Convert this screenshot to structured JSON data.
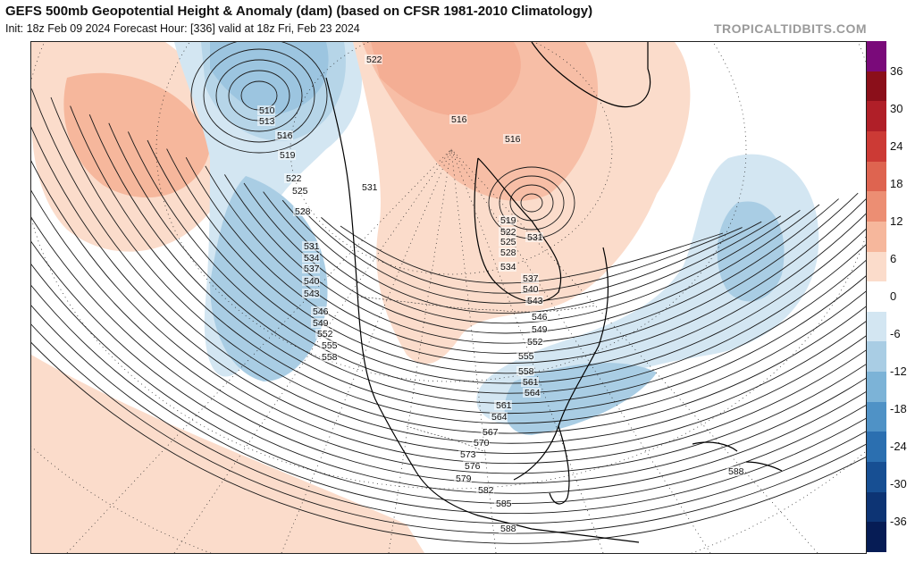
{
  "header": {
    "title": "GEFS 500mb Geopotential Height & Anomaly (dam) (based on CFSR 1981-2010 Climatology)",
    "subtitle": "Init: 18z Feb 09 2024   Forecast Hour: [336]   valid at 18z Fri, Feb 23 2024",
    "watermark": "TROPICALTIDBITS.COM"
  },
  "colorbar": {
    "labels": [
      "36",
      "30",
      "24",
      "18",
      "12",
      "6",
      "0",
      "-6",
      "-12",
      "-18",
      "-24",
      "-30",
      "-36"
    ],
    "colors": [
      "#7a0a7a",
      "#8b0f1a",
      "#b01f28",
      "#cc3a35",
      "#de6450",
      "#ec8e73",
      "#f6b79c",
      "#fbdccb",
      "#ffffff",
      "#d3e6f2",
      "#a9cde4",
      "#7cb3d7",
      "#4f92c6",
      "#2b6fb0",
      "#174f93",
      "#0d3474",
      "#061c55"
    ]
  },
  "map": {
    "height_labels": [
      "510",
      "513",
      "516",
      "519",
      "522",
      "525",
      "528",
      "531",
      "534",
      "537",
      "540",
      "543",
      "546",
      "549",
      "552",
      "555",
      "558",
      "561",
      "564",
      "567",
      "570",
      "573",
      "576",
      "579",
      "582",
      "585",
      "588",
      "522",
      "519",
      "522",
      "525",
      "528",
      "531",
      "534",
      "537",
      "540",
      "543",
      "546",
      "549",
      "552",
      "555",
      "558",
      "561",
      "564",
      "588",
      "516",
      "516",
      "531"
    ]
  }
}
